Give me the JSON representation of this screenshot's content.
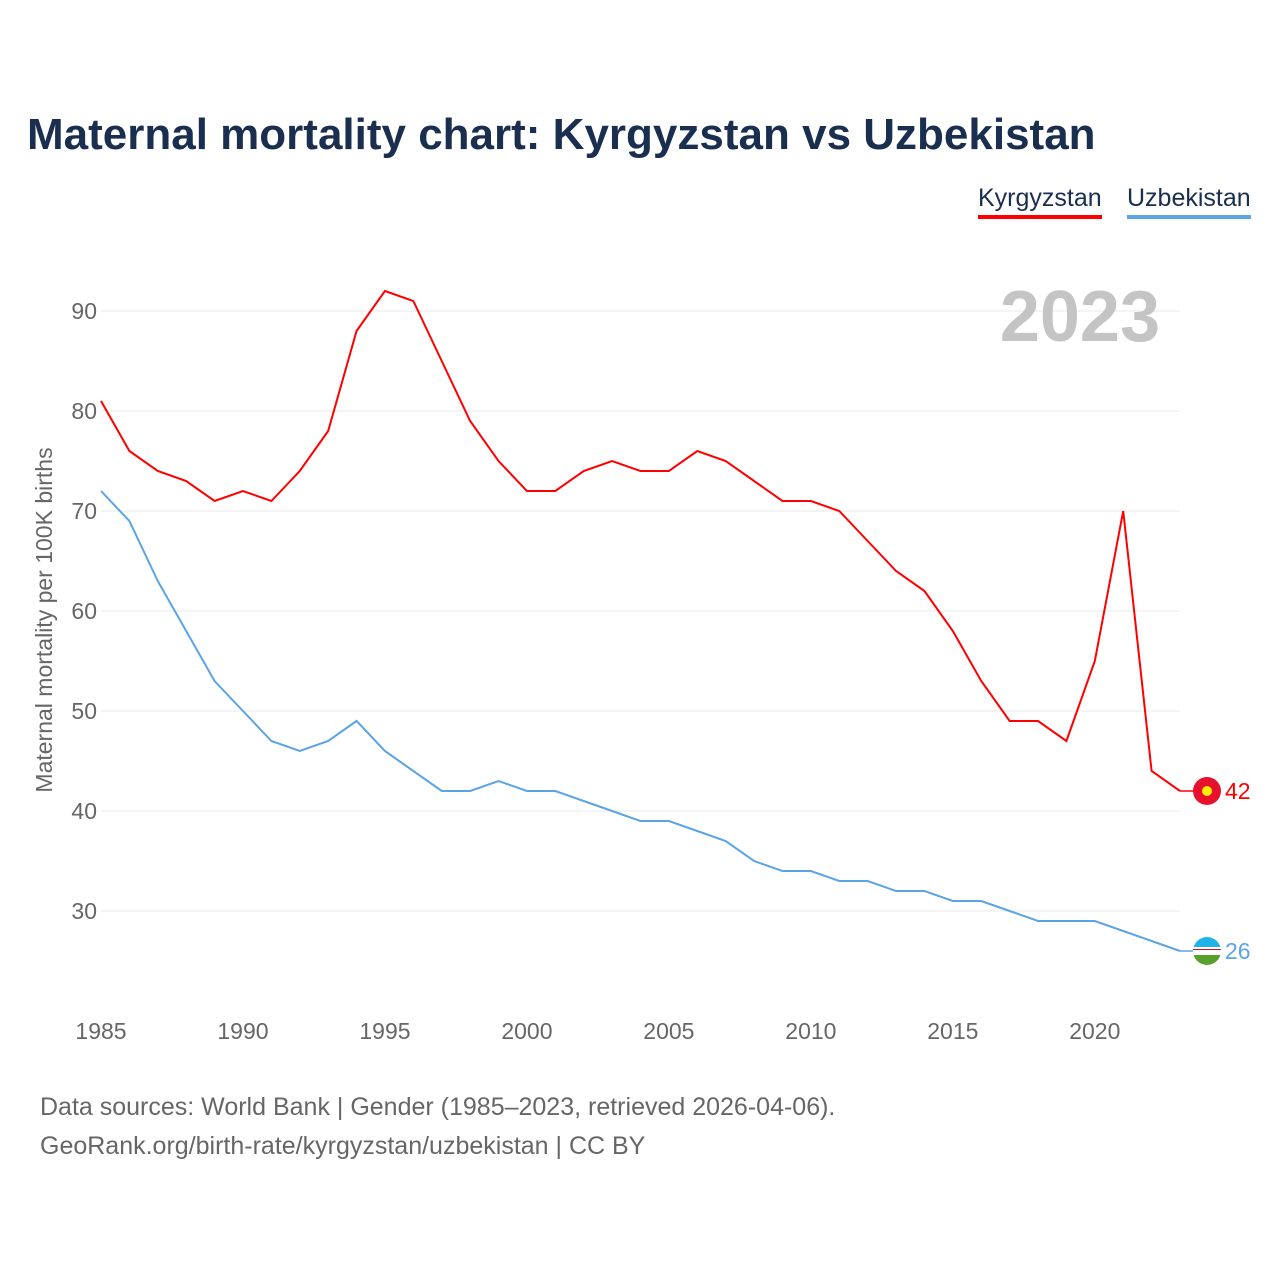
{
  "title": "Maternal mortality chart: Kyrgyzstan vs Uzbekistan",
  "source_line1": "Data sources: World Bank | Gender (1985–2023, retrieved 2026-04-06).",
  "source_line2": "GeoRank.org/birth-rate/kyrgyzstan/uzbekistan | CC BY",
  "chart_data": {
    "type": "line",
    "title": "Maternal mortality chart: Kyrgyzstan vs Uzbekistan",
    "xlabel": "",
    "ylabel": "Maternal mortality per 100K births",
    "year_label": "2023",
    "xlim": [
      1985,
      2023
    ],
    "ylim": [
      22,
      96
    ],
    "xticks": [
      1985,
      1990,
      1995,
      2000,
      2005,
      2010,
      2015,
      2020
    ],
    "yticks": [
      30,
      40,
      50,
      60,
      70,
      80,
      90
    ],
    "grid": true,
    "legend": "top-right",
    "x": [
      1985,
      1986,
      1987,
      1988,
      1989,
      1990,
      1991,
      1992,
      1993,
      1994,
      1995,
      1996,
      1997,
      1998,
      1999,
      2000,
      2001,
      2002,
      2003,
      2004,
      2005,
      2006,
      2007,
      2008,
      2009,
      2010,
      2011,
      2012,
      2013,
      2014,
      2015,
      2016,
      2017,
      2018,
      2019,
      2020,
      2021,
      2022,
      2023
    ],
    "series": [
      {
        "name": "Kyrgyzstan",
        "color": "#ff0000",
        "end_label": "42",
        "values": [
          81,
          76,
          74,
          73,
          71,
          72,
          71,
          74,
          78,
          88,
          92,
          91,
          85,
          79,
          75,
          72,
          72,
          74,
          75,
          74,
          74,
          76,
          75,
          73,
          71,
          71,
          70,
          67,
          64,
          62,
          58,
          53,
          49,
          49,
          47,
          55,
          70,
          44,
          42
        ]
      },
      {
        "name": "Uzbekistan",
        "color": "#5ba4e6",
        "end_label": "26",
        "values": [
          72,
          69,
          63,
          58,
          53,
          50,
          47,
          46,
          47,
          49,
          46,
          44,
          42,
          42,
          43,
          42,
          42,
          41,
          40,
          39,
          39,
          38,
          37,
          35,
          34,
          34,
          33,
          33,
          32,
          32,
          31,
          31,
          30,
          29,
          29,
          29,
          28,
          27,
          26
        ]
      }
    ]
  }
}
